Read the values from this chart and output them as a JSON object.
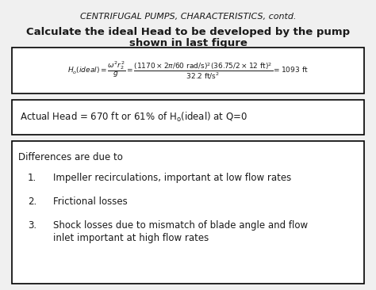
{
  "bg_color": "#f0f0f0",
  "page_bg": "#f0f0f0",
  "title_top": "CENTRIFUGAL PUMPS, CHARACTERISTICS, contd.",
  "subtitle_line1": "Calculate the ideal Head to be developed by the pump",
  "subtitle_line2": "shown in last figure",
  "eq_latex": "$H_o(ideal) = \\dfrac{\\omega^2 r_2^2}{g} = \\dfrac{\\left(1170 \\times 2\\pi/60\\ rad/s\\right)^2\\!\\left(36.75/2 \\times 12\\ ft\\right)^2}{32.2\\ ft/s^2} = 1093\\ ft$",
  "actual_head_text": "Actual Head = 670 ft or 61% of H",
  "actual_head_sub": "o",
  "actual_head_rest": "(ideal) at Q=0",
  "differences_title": "Differences are due to",
  "item1": "Impeller recirculations, important at low flow rates",
  "item2": "Frictional losses",
  "item3a": "Shock losses due to mismatch of blade angle and flow",
  "item3b": "inlet important at high flow rates",
  "box_edge": "#000000",
  "text_color": "#1a1a1a",
  "title_fontsize": 8.0,
  "subtitle_fontsize": 9.5,
  "body_fontsize": 8.5,
  "eq_fontsize": 6.5
}
